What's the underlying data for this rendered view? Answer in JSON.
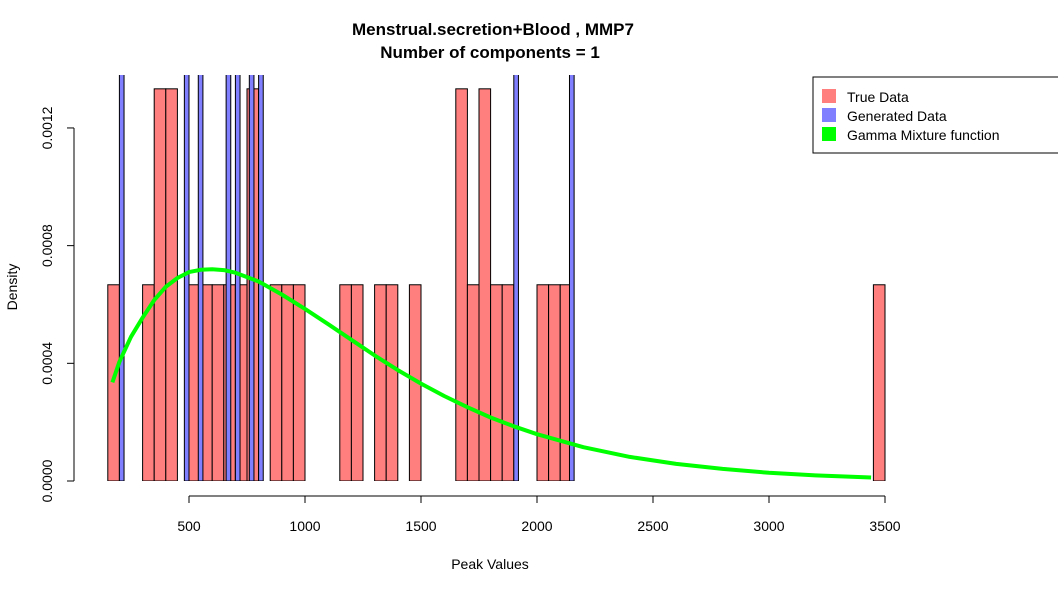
{
  "chart_data": {
    "type": "bar",
    "title": "Menstrual.secretion+Blood , MMP7",
    "subtitle": "Number of components =  1",
    "xlabel": "Peak Values",
    "ylabel": "Density",
    "xlim": [
      150,
      3450
    ],
    "ylim": [
      0,
      0.00138
    ],
    "x_ticks": [
      500,
      1000,
      1500,
      2000,
      2500,
      3000,
      3500
    ],
    "x_tick_labels": [
      "500",
      "1000",
      "1500",
      "2000",
      "2500",
      "3000",
      "3500"
    ],
    "y_ticks": [
      0,
      0.0004,
      0.0008,
      0.0012
    ],
    "y_tick_labels": [
      "0.0000",
      "0.0004",
      "0.0008",
      "0.0012"
    ],
    "legend": {
      "position": "top-right",
      "entries": [
        {
          "label": "True Data",
          "color": "#ff7f7f"
        },
        {
          "label": "Generated Data",
          "color": "#7f7fff"
        },
        {
          "label": "Gamma Mixture function",
          "color": "#00ff00"
        }
      ]
    },
    "series": [
      {
        "name": "True Data",
        "color": "#ff7f7f",
        "bin_width": 50,
        "bins": [
          {
            "x0": 150,
            "density": 0.000667
          },
          {
            "x0": 300,
            "density": 0.000667
          },
          {
            "x0": 350,
            "density": 0.001333
          },
          {
            "x0": 400,
            "density": 0.001333
          },
          {
            "x0": 500,
            "density": 0.000667
          },
          {
            "x0": 550,
            "density": 0.000667
          },
          {
            "x0": 600,
            "density": 0.000667
          },
          {
            "x0": 650,
            "density": 0.000667
          },
          {
            "x0": 700,
            "density": 0.000667
          },
          {
            "x0": 750,
            "density": 0.001333
          },
          {
            "x0": 850,
            "density": 0.000667
          },
          {
            "x0": 900,
            "density": 0.000667
          },
          {
            "x0": 950,
            "density": 0.000667
          },
          {
            "x0": 1150,
            "density": 0.000667
          },
          {
            "x0": 1200,
            "density": 0.000667
          },
          {
            "x0": 1300,
            "density": 0.000667
          },
          {
            "x0": 1350,
            "density": 0.000667
          },
          {
            "x0": 1450,
            "density": 0.000667
          },
          {
            "x0": 1650,
            "density": 0.001333
          },
          {
            "x0": 1700,
            "density": 0.000667
          },
          {
            "x0": 1750,
            "density": 0.001333
          },
          {
            "x0": 1800,
            "density": 0.000667
          },
          {
            "x0": 1850,
            "density": 0.000667
          },
          {
            "x0": 2000,
            "density": 0.000667
          },
          {
            "x0": 2050,
            "density": 0.000667
          },
          {
            "x0": 2100,
            "density": 0.000667
          },
          {
            "x0": 3450,
            "density": 0.000667
          }
        ]
      },
      {
        "name": "Generated Data",
        "color": "#7f7fff",
        "bin_width": 20,
        "bins": [
          {
            "x0": 200,
            "density": 0.0025
          },
          {
            "x0": 480,
            "density": 0.0025
          },
          {
            "x0": 540,
            "density": 0.0025
          },
          {
            "x0": 660,
            "density": 0.0025
          },
          {
            "x0": 700,
            "density": 0.0025
          },
          {
            "x0": 760,
            "density": 0.0025
          },
          {
            "x0": 800,
            "density": 0.0025
          },
          {
            "x0": 1900,
            "density": 0.0025
          },
          {
            "x0": 2140,
            "density": 0.0025
          }
        ]
      },
      {
        "name": "Gamma Mixture function",
        "color": "#00ff00",
        "type": "line",
        "x": [
          170,
          200,
          250,
          300,
          350,
          400,
          450,
          500,
          550,
          600,
          650,
          700,
          800,
          900,
          1000,
          1100,
          1200,
          1300,
          1400,
          1500,
          1600,
          1700,
          1800,
          1900,
          2000,
          2200,
          2400,
          2600,
          2800,
          3000,
          3200,
          3440
        ],
        "y": [
          0.000335,
          0.000405,
          0.00049,
          0.000555,
          0.000615,
          0.00066,
          0.00069,
          0.00071,
          0.000718,
          0.00072,
          0.000717,
          0.000708,
          0.000678,
          0.000634,
          0.000585,
          0.000533,
          0.00048,
          0.000427,
          0.000377,
          0.000331,
          0.000289,
          0.000251,
          0.000216,
          0.000186,
          0.000159,
          0.000115,
          8.2e-05,
          5.8e-05,
          4.1e-05,
          2.8e-05,
          1.9e-05,
          1.2e-05
        ]
      }
    ]
  }
}
